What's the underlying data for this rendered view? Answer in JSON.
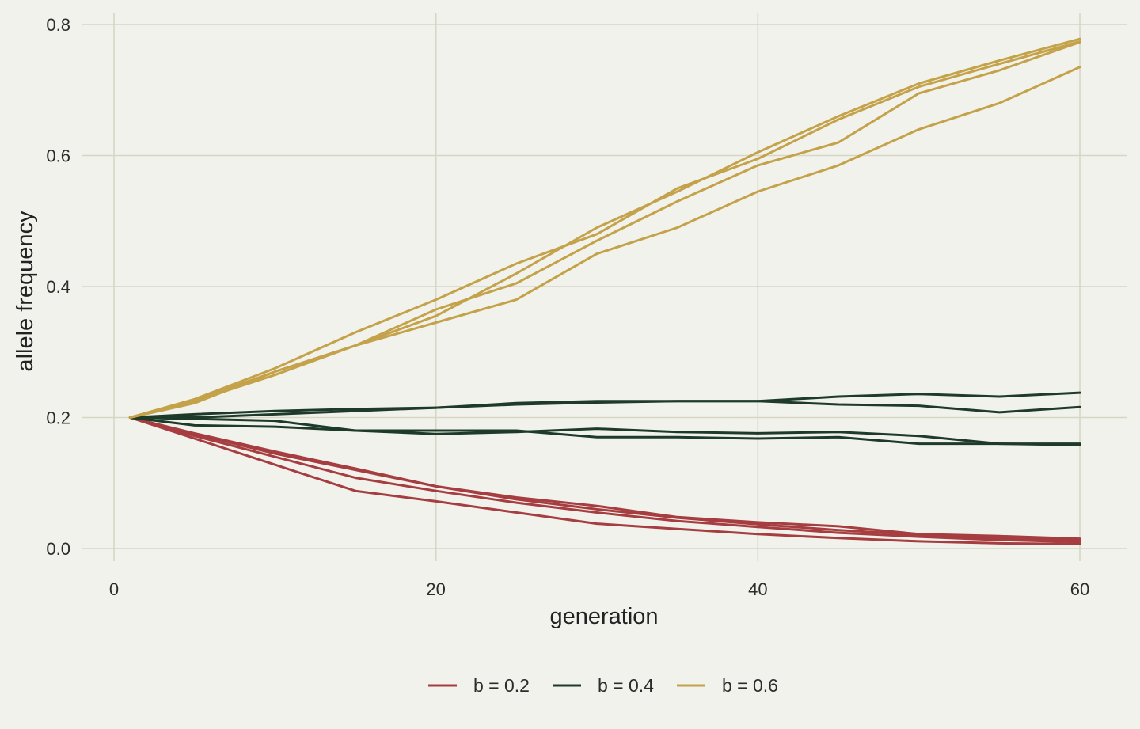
{
  "chart_data": {
    "type": "line",
    "xlabel": "generation",
    "ylabel": "allele frequency",
    "xlim": [
      -0.5,
      62.7
    ],
    "ylim": [
      -0.02,
      0.82
    ],
    "x_ticks": [
      0,
      20,
      40,
      60
    ],
    "x_tick_labels": [
      "0",
      "20",
      "40",
      "60"
    ],
    "y_ticks": [
      0.0,
      0.2,
      0.4,
      0.6,
      0.8
    ],
    "y_tick_labels": [
      "0.0",
      "0.2",
      "0.4",
      "0.6",
      "0.8"
    ],
    "grid": true,
    "legend_position": "bottom",
    "groups": [
      {
        "name": "b = 0.2",
        "color": "#a63d40",
        "runs": [
          {
            "x": [
              1,
              5,
              10,
              15,
              20,
              25,
              30,
              35,
              40,
              45,
              50,
              55,
              60
            ],
            "y": [
              0.2,
              0.175,
              0.145,
              0.12,
              0.095,
              0.075,
              0.06,
              0.047,
              0.037,
              0.028,
              0.021,
              0.016,
              0.012
            ]
          },
          {
            "x": [
              1,
              5,
              10,
              15,
              20,
              25,
              30,
              35,
              40,
              45,
              50,
              55,
              60
            ],
            "y": [
              0.2,
              0.168,
              0.128,
              0.088,
              0.072,
              0.055,
              0.038,
              0.03,
              0.022,
              0.016,
              0.011,
              0.008,
              0.007
            ]
          },
          {
            "x": [
              1,
              5,
              10,
              15,
              20,
              25,
              30,
              35,
              40,
              45,
              50,
              55,
              60
            ],
            "y": [
              0.2,
              0.172,
              0.14,
              0.108,
              0.088,
              0.07,
              0.055,
              0.042,
              0.033,
              0.024,
              0.018,
              0.013,
              0.01
            ]
          },
          {
            "x": [
              1,
              5,
              10,
              15,
              20,
              25,
              30,
              35,
              40,
              45,
              50,
              55,
              60
            ],
            "y": [
              0.2,
              0.176,
              0.148,
              0.122,
              0.095,
              0.078,
              0.065,
              0.048,
              0.04,
              0.034,
              0.022,
              0.019,
              0.015
            ]
          }
        ]
      },
      {
        "name": "b = 0.4",
        "color": "#1e3b2a",
        "runs": [
          {
            "x": [
              1,
              5,
              10,
              15,
              20,
              25,
              30,
              35,
              40,
              45,
              50,
              55,
              60
            ],
            "y": [
              0.2,
              0.205,
              0.21,
              0.213,
              0.215,
              0.22,
              0.223,
              0.225,
              0.225,
              0.232,
              0.236,
              0.232,
              0.238
            ]
          },
          {
            "x": [
              1,
              5,
              10,
              15,
              20,
              25,
              30,
              35,
              40,
              45,
              50,
              55,
              60
            ],
            "y": [
              0.2,
              0.2,
              0.205,
              0.21,
              0.215,
              0.222,
              0.225,
              0.225,
              0.225,
              0.22,
              0.218,
              0.208,
              0.216
            ]
          },
          {
            "x": [
              1,
              5,
              10,
              15,
              20,
              25,
              30,
              35,
              40,
              45,
              50,
              55,
              60
            ],
            "y": [
              0.2,
              0.188,
              0.186,
              0.18,
              0.18,
              0.18,
              0.17,
              0.17,
              0.168,
              0.17,
              0.16,
              0.16,
              0.158
            ]
          },
          {
            "x": [
              1,
              5,
              10,
              15,
              20,
              25,
              30,
              35,
              40,
              45,
              50,
              55,
              60
            ],
            "y": [
              0.2,
              0.198,
              0.195,
              0.18,
              0.175,
              0.178,
              0.183,
              0.178,
              0.176,
              0.178,
              0.172,
              0.16,
              0.16
            ]
          }
        ]
      },
      {
        "name": "b = 0.6",
        "color": "#c4a24a",
        "runs": [
          {
            "x": [
              1,
              5,
              10,
              15,
              20,
              25,
              30,
              35,
              40,
              45,
              50,
              55,
              60
            ],
            "y": [
              0.2,
              0.225,
              0.265,
              0.31,
              0.355,
              0.42,
              0.49,
              0.545,
              0.605,
              0.66,
              0.71,
              0.745,
              0.778
            ]
          },
          {
            "x": [
              1,
              5,
              10,
              15,
              20,
              25,
              30,
              35,
              40,
              45,
              50,
              55,
              60
            ],
            "y": [
              0.2,
              0.228,
              0.275,
              0.33,
              0.38,
              0.435,
              0.48,
              0.55,
              0.595,
              0.655,
              0.705,
              0.74,
              0.774
            ]
          },
          {
            "x": [
              1,
              5,
              10,
              15,
              20,
              25,
              30,
              35,
              40,
              45,
              50,
              55,
              60
            ],
            "y": [
              0.2,
              0.226,
              0.27,
              0.31,
              0.365,
              0.405,
              0.47,
              0.53,
              0.585,
              0.62,
              0.695,
              0.73,
              0.773
            ]
          },
          {
            "x": [
              1,
              5,
              10,
              15,
              20,
              25,
              30,
              35,
              40,
              45,
              50,
              55,
              60
            ],
            "y": [
              0.2,
              0.222,
              0.27,
              0.31,
              0.345,
              0.38,
              0.45,
              0.49,
              0.545,
              0.585,
              0.64,
              0.68,
              0.735
            ]
          }
        ]
      }
    ]
  }
}
